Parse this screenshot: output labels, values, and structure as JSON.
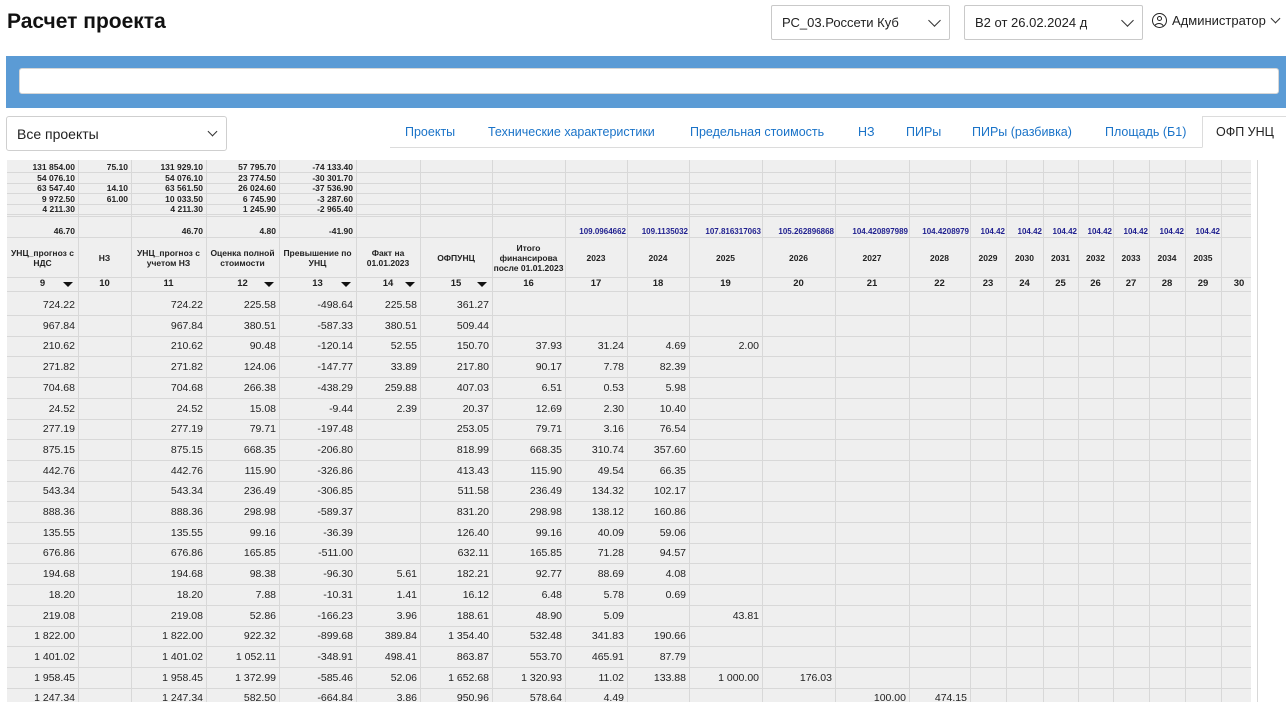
{
  "header": {
    "title": "Расчет проекта",
    "filial_select": "РС_03.Россети Куб",
    "version_select": "В2 от 26.02.2024 д",
    "user_name": "Администратор"
  },
  "project_select": "Все проекты",
  "tabs": [
    {
      "label": "Проекты",
      "active": false
    },
    {
      "label": "Технические характеристики",
      "active": false
    },
    {
      "label": "Предельная стоимость",
      "active": false
    },
    {
      "label": "НЗ",
      "active": false
    },
    {
      "label": "ПИРы",
      "active": false
    },
    {
      "label": "ПИРы (разбивка)",
      "active": false
    },
    {
      "label": "Площадь (Б1)",
      "active": false
    },
    {
      "label": "ОФП УНЦ",
      "active": true
    }
  ],
  "summary_rows": [
    [
      "131 854.00",
      "75.10",
      "131 929.10",
      "57 795.70",
      "-74 133.40"
    ],
    [
      "54 076.10",
      "",
      "54 076.10",
      "23 774.50",
      "-30 301.70"
    ],
    [
      "63 547.40",
      "14.10",
      "63 561.50",
      "26 024.60",
      "-37 536.90"
    ],
    [
      "9 972.50",
      "61.00",
      "10 033.50",
      "6 745.90",
      "-3 287.60"
    ],
    [
      "4 211.30",
      "",
      "4 211.30",
      "1 245.90",
      "-2 965.40"
    ]
  ],
  "totals_row": [
    "46.70",
    "",
    "46.70",
    "4.80",
    "-41.90"
  ],
  "year_coefficients": [
    "109.0964662",
    "109.1135032",
    "107.816317063",
    "105.262896868",
    "104.420897989",
    "104.4208979",
    "104.42",
    "104.42",
    "104.42",
    "104.42",
    "104.42",
    "104.42",
    "104.42"
  ],
  "columns": [
    {
      "label": "УНЦ_прогноз с НДС",
      "num": "9",
      "filter": true
    },
    {
      "label": "НЗ",
      "num": "10",
      "filter": false
    },
    {
      "label": "УНЦ_прогноз с учетом НЗ",
      "num": "11",
      "filter": false
    },
    {
      "label": "Оценка полной стоимости",
      "num": "12",
      "filter": true
    },
    {
      "label": "Превышение по УНЦ",
      "num": "13",
      "filter": true
    },
    {
      "label": "Факт на 01.01.2023",
      "num": "14",
      "filter": true
    },
    {
      "label": "ОФПУНЦ",
      "num": "15",
      "filter": true
    },
    {
      "label": "Итого финансирова после 01.01.2023",
      "num": "16",
      "filter": false
    },
    {
      "label": "2023",
      "num": "17",
      "filter": false
    },
    {
      "label": "2024",
      "num": "18",
      "filter": false
    },
    {
      "label": "2025",
      "num": "19",
      "filter": false
    },
    {
      "label": "2026",
      "num": "20",
      "filter": false
    },
    {
      "label": "2027",
      "num": "21",
      "filter": false
    },
    {
      "label": "2028",
      "num": "22",
      "filter": false
    },
    {
      "label": "2029",
      "num": "23",
      "filter": false
    },
    {
      "label": "2030",
      "num": "24",
      "filter": false
    },
    {
      "label": "2031",
      "num": "25",
      "filter": false
    },
    {
      "label": "2032",
      "num": "26",
      "filter": false
    },
    {
      "label": "2033",
      "num": "27",
      "filter": false
    },
    {
      "label": "2034",
      "num": "28",
      "filter": false
    },
    {
      "label": "2035",
      "num": "29",
      "filter": false
    },
    {
      "label": "",
      "num": "30",
      "filter": false
    }
  ],
  "rows": [
    [
      "724.22",
      "",
      "724.22",
      "225.58",
      "-498.64",
      "225.58",
      "361.27",
      "",
      "",
      "",
      "",
      "",
      "",
      "",
      ""
    ],
    [
      "967.84",
      "",
      "967.84",
      "380.51",
      "-587.33",
      "380.51",
      "509.44",
      "",
      "",
      "",
      "",
      "",
      "",
      "",
      ""
    ],
    [
      "210.62",
      "",
      "210.62",
      "90.48",
      "-120.14",
      "52.55",
      "150.70",
      "37.93",
      "31.24",
      "4.69",
      "2.00",
      "",
      "",
      "",
      ""
    ],
    [
      "271.82",
      "",
      "271.82",
      "124.06",
      "-147.77",
      "33.89",
      "217.80",
      "90.17",
      "7.78",
      "82.39",
      "",
      "",
      "",
      "",
      ""
    ],
    [
      "704.68",
      "",
      "704.68",
      "266.38",
      "-438.29",
      "259.88",
      "407.03",
      "6.51",
      "0.53",
      "5.98",
      "",
      "",
      "",
      "",
      ""
    ],
    [
      "24.52",
      "",
      "24.52",
      "15.08",
      "-9.44",
      "2.39",
      "20.37",
      "12.69",
      "2.30",
      "10.40",
      "",
      "",
      "",
      "",
      ""
    ],
    [
      "277.19",
      "",
      "277.19",
      "79.71",
      "-197.48",
      "",
      "253.05",
      "79.71",
      "3.16",
      "76.54",
      "",
      "",
      "",
      "",
      ""
    ],
    [
      "875.15",
      "",
      "875.15",
      "668.35",
      "-206.80",
      "",
      "818.99",
      "668.35",
      "310.74",
      "357.60",
      "",
      "",
      "",
      "",
      ""
    ],
    [
      "442.76",
      "",
      "442.76",
      "115.90",
      "-326.86",
      "",
      "413.43",
      "115.90",
      "49.54",
      "66.35",
      "",
      "",
      "",
      "",
      ""
    ],
    [
      "543.34",
      "",
      "543.34",
      "236.49",
      "-306.85",
      "",
      "511.58",
      "236.49",
      "134.32",
      "102.17",
      "",
      "",
      "",
      "",
      ""
    ],
    [
      "888.36",
      "",
      "888.36",
      "298.98",
      "-589.37",
      "",
      "831.20",
      "298.98",
      "138.12",
      "160.86",
      "",
      "",
      "",
      "",
      ""
    ],
    [
      "135.55",
      "",
      "135.55",
      "99.16",
      "-36.39",
      "",
      "126.40",
      "99.16",
      "40.09",
      "59.06",
      "",
      "",
      "",
      "",
      ""
    ],
    [
      "676.86",
      "",
      "676.86",
      "165.85",
      "-511.00",
      "",
      "632.11",
      "165.85",
      "71.28",
      "94.57",
      "",
      "",
      "",
      "",
      ""
    ],
    [
      "194.68",
      "",
      "194.68",
      "98.38",
      "-96.30",
      "5.61",
      "182.21",
      "92.77",
      "88.69",
      "4.08",
      "",
      "",
      "",
      "",
      ""
    ],
    [
      "18.20",
      "",
      "18.20",
      "7.88",
      "-10.31",
      "1.41",
      "16.12",
      "6.48",
      "5.78",
      "0.69",
      "",
      "",
      "",
      "",
      ""
    ],
    [
      "219.08",
      "",
      "219.08",
      "52.86",
      "-166.23",
      "3.96",
      "188.61",
      "48.90",
      "5.09",
      "",
      "43.81",
      "",
      "",
      "",
      ""
    ],
    [
      "1 822.00",
      "",
      "1 822.00",
      "922.32",
      "-899.68",
      "389.84",
      "1 354.40",
      "532.48",
      "341.83",
      "190.66",
      "",
      "",
      "",
      "",
      ""
    ],
    [
      "1 401.02",
      "",
      "1 401.02",
      "1 052.11",
      "-348.91",
      "498.41",
      "863.87",
      "553.70",
      "465.91",
      "87.79",
      "",
      "",
      "",
      "",
      ""
    ],
    [
      "1 958.45",
      "",
      "1 958.45",
      "1 372.99",
      "-585.46",
      "52.06",
      "1 652.68",
      "1 320.93",
      "11.02",
      "133.88",
      "1 000.00",
      "176.03",
      "",
      "",
      ""
    ],
    [
      "1 247.34",
      "",
      "1 247.34",
      "582.50",
      "-664.84",
      "3.86",
      "950.96",
      "578.64",
      "4.49",
      "",
      "",
      "",
      "100.00",
      "474.15",
      ""
    ]
  ]
}
